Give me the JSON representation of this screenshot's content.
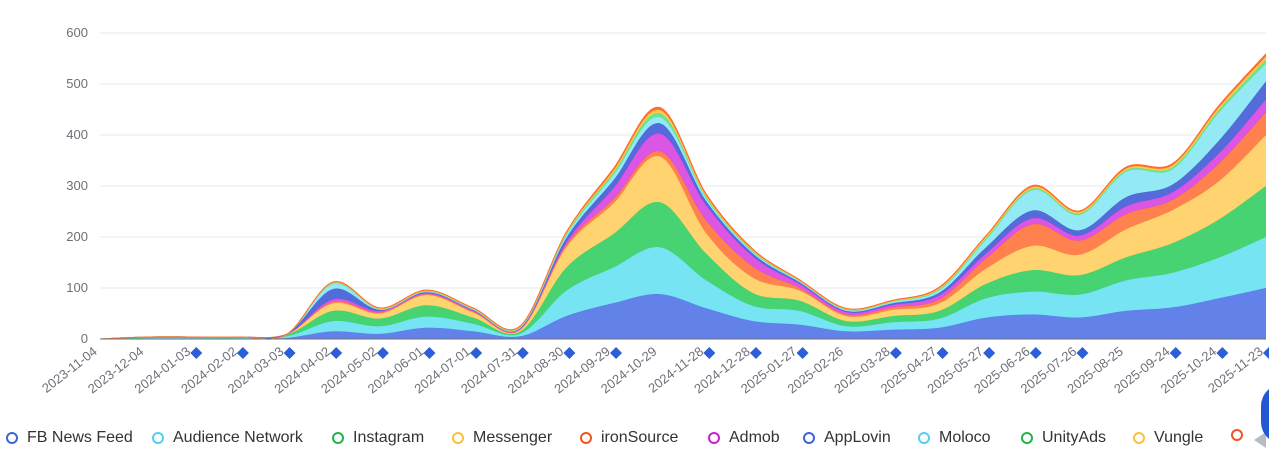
{
  "chart_data": {
    "type": "area",
    "stacked": true,
    "smooth": true,
    "ylim": [
      0,
      600
    ],
    "yticks": [
      0,
      100,
      200,
      300,
      400,
      500,
      600
    ],
    "grid": true,
    "legend_position": "bottom",
    "x": [
      "2023-11-04",
      "2023-12-04",
      "2024-01-03",
      "2024-02-02",
      "2024-03-03",
      "2024-04-02",
      "2024-05-02",
      "2024-06-01",
      "2024-07-01",
      "2024-07-31",
      "2024-08-30",
      "2024-09-29",
      "2024-10-29",
      "2024-11-28",
      "2024-12-28",
      "2025-01-27",
      "2025-02-26",
      "2025-03-28",
      "2025-04-27",
      "2025-05-27",
      "2025-06-26",
      "2025-07-26",
      "2025-08-25",
      "2025-09-24",
      "2025-10-24",
      "2025-11-23"
    ],
    "x_markers": [
      "2024-01-03",
      "2024-02-02",
      "2024-03-03",
      "2024-04-02",
      "2024-05-02",
      "2024-06-01",
      "2024-07-01",
      "2024-07-31",
      "2024-08-30",
      "2024-09-29",
      "2024-11-28",
      "2024-12-28",
      "2025-01-27",
      "2025-03-28",
      "2025-04-27",
      "2025-05-27",
      "2025-06-26",
      "2025-07-26",
      "2025-09-24",
      "2025-10-24",
      "2025-11-23"
    ],
    "marker_color": "#2c5fd6",
    "series": [
      {
        "name": "FB News Feed",
        "color": "#5b7be8",
        "values": [
          0,
          1,
          1,
          1,
          2,
          15,
          10,
          22,
          15,
          5,
          45,
          70,
          88,
          60,
          35,
          28,
          15,
          18,
          22,
          42,
          48,
          42,
          55,
          62,
          80,
          100
        ]
      },
      {
        "name": "Audience Network",
        "color": "#6fe3f2",
        "values": [
          0,
          1,
          1,
          1,
          3,
          20,
          15,
          22,
          15,
          5,
          50,
          70,
          92,
          55,
          30,
          27,
          10,
          15,
          18,
          38,
          45,
          45,
          60,
          68,
          80,
          100
        ]
      },
      {
        "name": "Instagram",
        "color": "#3dd16a",
        "values": [
          0,
          1,
          1,
          1,
          3,
          20,
          15,
          22,
          12,
          4,
          45,
          65,
          88,
          52,
          25,
          20,
          10,
          12,
          15,
          28,
          42,
          38,
          45,
          58,
          75,
          100
        ]
      },
      {
        "name": "Messenger",
        "color": "#ffd167",
        "values": [
          0,
          1,
          1,
          1,
          1,
          15,
          10,
          20,
          10,
          3,
          40,
          60,
          90,
          40,
          30,
          20,
          10,
          12,
          15,
          30,
          48,
          40,
          55,
          65,
          75,
          100
        ]
      },
      {
        "name": "ironSource",
        "color": "#ff7a45",
        "values": [
          0,
          0,
          0,
          0,
          0,
          3,
          2,
          2,
          2,
          1,
          5,
          8,
          10,
          25,
          22,
          5,
          3,
          5,
          8,
          20,
          42,
          28,
          30,
          20,
          35,
          45
        ]
      },
      {
        "name": "Admob",
        "color": "#d94de0",
        "values": [
          0,
          0,
          0,
          0,
          0,
          5,
          3,
          2,
          2,
          2,
          5,
          22,
          35,
          30,
          20,
          8,
          5,
          5,
          8,
          10,
          12,
          10,
          15,
          15,
          20,
          25
        ]
      },
      {
        "name": "AppLovin",
        "color": "#4a64d8",
        "values": [
          0,
          0,
          0,
          0,
          0,
          20,
          2,
          2,
          1,
          1,
          8,
          15,
          20,
          8,
          5,
          3,
          2,
          3,
          5,
          12,
          15,
          10,
          18,
          15,
          25,
          35
        ]
      },
      {
        "name": "Moloco",
        "color": "#8ee9f3",
        "values": [
          0,
          0,
          0,
          0,
          0,
          10,
          1,
          1,
          1,
          1,
          5,
          10,
          12,
          5,
          3,
          2,
          2,
          3,
          5,
          15,
          40,
          30,
          50,
          30,
          55,
          35
        ]
      },
      {
        "name": "UnityAds",
        "color": "#66e08a",
        "values": [
          0,
          0,
          0,
          0,
          0,
          2,
          1,
          1,
          1,
          1,
          3,
          5,
          8,
          3,
          2,
          1,
          1,
          1,
          2,
          3,
          3,
          3,
          3,
          4,
          5,
          8
        ]
      },
      {
        "name": "Vungle",
        "color": "#ffc94a",
        "values": [
          0,
          0,
          0,
          0,
          0,
          1,
          1,
          1,
          1,
          1,
          2,
          4,
          6,
          3,
          2,
          1,
          1,
          1,
          2,
          3,
          3,
          3,
          3,
          4,
          5,
          6
        ]
      },
      {
        "name": "ironSource",
        "color": "#ff6a2a",
        "values": [
          0,
          0,
          0,
          0,
          0,
          1,
          1,
          1,
          1,
          1,
          2,
          4,
          5,
          3,
          2,
          1,
          1,
          1,
          2,
          2,
          3,
          2,
          3,
          3,
          4,
          5
        ]
      }
    ]
  },
  "legend": {
    "items": [
      {
        "label": "FB News Feed",
        "color": "#3d63dd"
      },
      {
        "label": "Audience Network",
        "color": "#4fd3ea"
      },
      {
        "label": "Instagram",
        "color": "#21b24a"
      },
      {
        "label": "Messenger",
        "color": "#f7c33c"
      },
      {
        "label": "ironSource",
        "color": "#f2541b"
      },
      {
        "label": "Admob",
        "color": "#c81fcf"
      },
      {
        "label": "AppLovin",
        "color": "#3d63dd"
      },
      {
        "label": "Moloco",
        "color": "#4fd3ea"
      },
      {
        "label": "UnityAds",
        "color": "#21b24a"
      },
      {
        "label": "Vungle",
        "color": "#f7c33c"
      },
      {
        "label": "",
        "color": "#f2541b"
      }
    ]
  }
}
